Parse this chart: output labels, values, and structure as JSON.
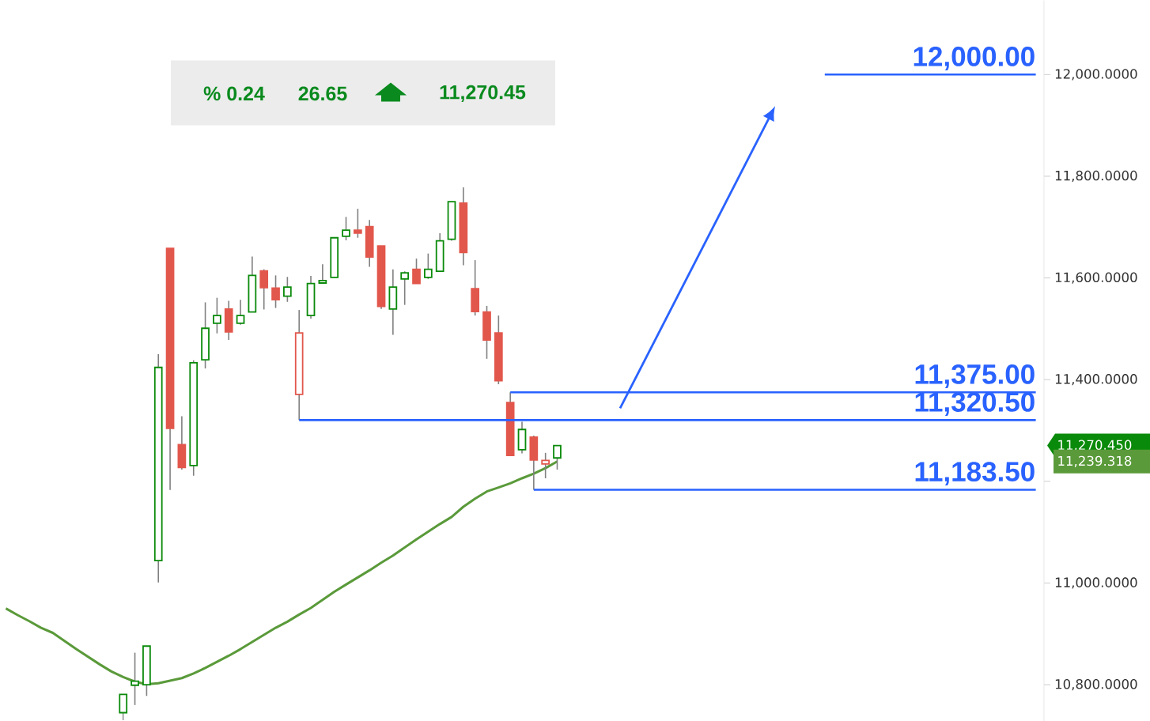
{
  "chart_data": {
    "type": "candlestick",
    "categories": [
      null,
      null,
      null,
      null,
      null,
      null,
      null,
      null,
      null,
      null,
      null,
      null,
      null,
      null,
      null,
      null,
      null,
      null,
      null,
      null,
      null,
      null,
      null,
      null,
      null,
      null,
      null,
      null,
      null,
      null,
      null,
      null,
      null,
      null,
      null,
      null,
      null,
      null,
      null,
      null,
      null,
      null,
      null,
      null,
      null,
      null,
      null,
      null,
      null,
      null,
      null,
      null,
      null,
      null,
      null,
      null,
      null,
      null,
      null,
      null,
      null,
      null,
      null,
      null,
      null,
      null,
      null,
      null,
      null,
      null,
      null,
      null,
      null,
      null,
      null,
      null,
      null,
      null,
      null,
      null,
      null,
      null,
      null,
      null,
      null,
      null,
      null,
      null,
      null
    ],
    "ohlc": [
      null,
      null,
      null,
      null,
      null,
      null,
      null,
      null,
      null,
      null,
      [
        10745,
        10781,
        10730,
        10781
      ],
      [
        10799,
        10863,
        10760,
        10807
      ],
      [
        10800,
        10876,
        10778,
        10876
      ],
      [
        11044,
        11450,
        11001,
        11424
      ],
      [
        11658,
        11658,
        11183,
        11304
      ],
      [
        11272,
        11328,
        11223,
        11227
      ],
      [
        11231,
        11438,
        11211,
        11433
      ],
      [
        11439,
        11552,
        11422,
        11501
      ],
      [
        11511,
        11561,
        11491,
        11526
      ],
      [
        11539,
        11555,
        11478,
        11494
      ],
      [
        11511,
        11557,
        11508,
        11526
      ],
      [
        11533,
        11642,
        11533,
        11605
      ],
      [
        11614,
        11617,
        11538,
        11581
      ],
      [
        11580,
        11605,
        11541,
        11557
      ],
      [
        11564,
        11602,
        11553,
        11582
      ],
      [
        11371,
        11537,
        11320.5,
        11492
      ],
      [
        11526,
        11604,
        11520,
        11589
      ],
      [
        11590,
        11627,
        11590,
        11595
      ],
      [
        11601,
        11679,
        11601,
        11679
      ],
      [
        11682,
        11720,
        11674,
        11694
      ],
      [
        11694,
        11736,
        11679,
        11688
      ],
      [
        11701,
        11714,
        11622,
        11641
      ],
      [
        11663,
        11663,
        11539,
        11544
      ],
      [
        11539,
        11617,
        11488,
        11582
      ],
      [
        11598,
        11613,
        11547,
        11610
      ],
      [
        11617,
        11638,
        11589,
        11589
      ],
      [
        11601,
        11648,
        11598,
        11617
      ],
      [
        11613,
        11688,
        11613,
        11673
      ],
      [
        11676,
        11750,
        11673,
        11750
      ],
      [
        11747,
        11778,
        11625,
        11650
      ],
      [
        11579,
        11635,
        11526,
        11534
      ],
      [
        11533,
        11545,
        11441,
        11478
      ],
      [
        11492,
        11526,
        11391,
        11398
      ],
      [
        11355,
        11375,
        11251,
        11251
      ],
      [
        11262,
        11317,
        11255,
        11302
      ],
      [
        11287,
        11290,
        11183.5,
        11242
      ],
      [
        11234,
        11256,
        11206,
        11241
      ],
      [
        11246,
        11270.45,
        11223,
        11270.45
      ],
      null,
      null,
      null,
      null,
      null,
      null,
      null,
      null,
      null,
      null,
      null,
      null,
      null,
      null,
      null,
      null,
      null,
      null,
      null,
      null,
      null,
      null,
      null,
      null,
      null,
      null,
      null,
      null,
      null,
      null,
      null,
      null,
      null,
      null,
      null,
      null,
      null,
      null,
      null,
      null,
      null
    ],
    "colors": [
      null,
      null,
      null,
      null,
      null,
      null,
      null,
      null,
      null,
      null,
      "#0a8a0a",
      "#0a8a0a",
      "#0a8a0a",
      "#0a8a0a",
      "#e2574c",
      "#e2574c",
      "#0a8a0a",
      "#0a8a0a",
      "#0a8a0a",
      "#e2574c",
      "#0a8a0a",
      "#0a8a0a",
      "#e2574c",
      "#e2574c",
      "#0a8a0a",
      "#e2574c",
      "#0a8a0a",
      "#0a8a0a",
      "#0a8a0a",
      "#0a8a0a",
      "#e2574c",
      "#e2574c",
      "#e2574c",
      "#0a8a0a",
      "#0a8a0a",
      "#e2574c",
      "#0a8a0a",
      "#0a8a0a",
      "#0a8a0a",
      "#e2574c",
      "#e2574c",
      "#e2574c",
      "#e2574c",
      "#e2574c",
      "#0a8a0a",
      "#e2574c",
      "#e2574c",
      "#0a8a0a",
      null,
      null,
      null,
      null,
      null,
      null,
      null,
      null,
      null,
      null,
      null,
      null,
      null,
      null,
      null,
      null,
      null,
      null,
      null,
      null,
      null,
      null,
      null,
      null,
      null,
      null,
      null,
      null,
      null,
      null,
      null,
      null,
      null,
      null,
      null,
      null,
      null,
      null,
      null,
      null,
      null
    ],
    "series": [
      {
        "type": "line",
        "color": "#5a9a3a",
        "values": [
          10950,
          10937,
          10925,
          10912,
          10902,
          10886,
          10870,
          10855,
          10840,
          10826,
          10815,
          10806,
          10801,
          10803,
          10808,
          10813,
          10822,
          10833,
          10845,
          10857,
          10870,
          10884,
          10898,
          10912,
          10924,
          10938,
          10951,
          10967,
          10983,
          10997,
          11011,
          11025,
          11040,
          11054,
          11070,
          11086,
          11101,
          11116,
          11130,
          11150,
          11166,
          11180,
          11188,
          11196,
          11206,
          11215,
          11226,
          11239,
          null,
          null,
          null,
          null,
          null,
          null,
          null,
          null,
          null,
          null,
          null,
          null,
          null,
          null,
          null,
          null,
          null,
          null,
          null,
          null,
          null,
          null,
          null,
          null,
          null,
          null,
          null,
          null,
          null,
          null,
          null,
          null,
          null,
          null,
          null,
          null,
          null,
          null,
          null,
          null,
          null
        ]
      }
    ],
    "ylim": [
      10728,
      12146
    ],
    "yticks": [
      {
        "value": 10800,
        "label": "10,800.0000"
      },
      {
        "value": 11000,
        "label": "11,000.0000"
      },
      {
        "value": 11200,
        "label": null
      },
      {
        "value": 11400,
        "label": "11,400.0000"
      },
      {
        "value": 11600,
        "label": "11,600.0000"
      },
      {
        "value": 11800,
        "label": "11,800.0000"
      },
      {
        "value": 12000,
        "label": "12,000.0000"
      }
    ],
    "ref_lines": [
      {
        "axis": "y",
        "value": 12000,
        "label": "12,000.00",
        "color": "#2962ff"
      },
      {
        "axis": "y",
        "value": 11375,
        "label": "11,375.00",
        "color": "#2962ff"
      },
      {
        "axis": "y",
        "value": 11320.5,
        "label": "11,320.50",
        "color": "#2962ff"
      },
      {
        "axis": "y",
        "value": 11183.5,
        "label": "11,183.50",
        "color": "#2962ff"
      }
    ],
    "annotations": [
      "% 0.24",
      "26.65",
      "11,270.45",
      "11,270.450",
      "11,239.318"
    ],
    "grid": false,
    "tick_labels": "y"
  }
}
